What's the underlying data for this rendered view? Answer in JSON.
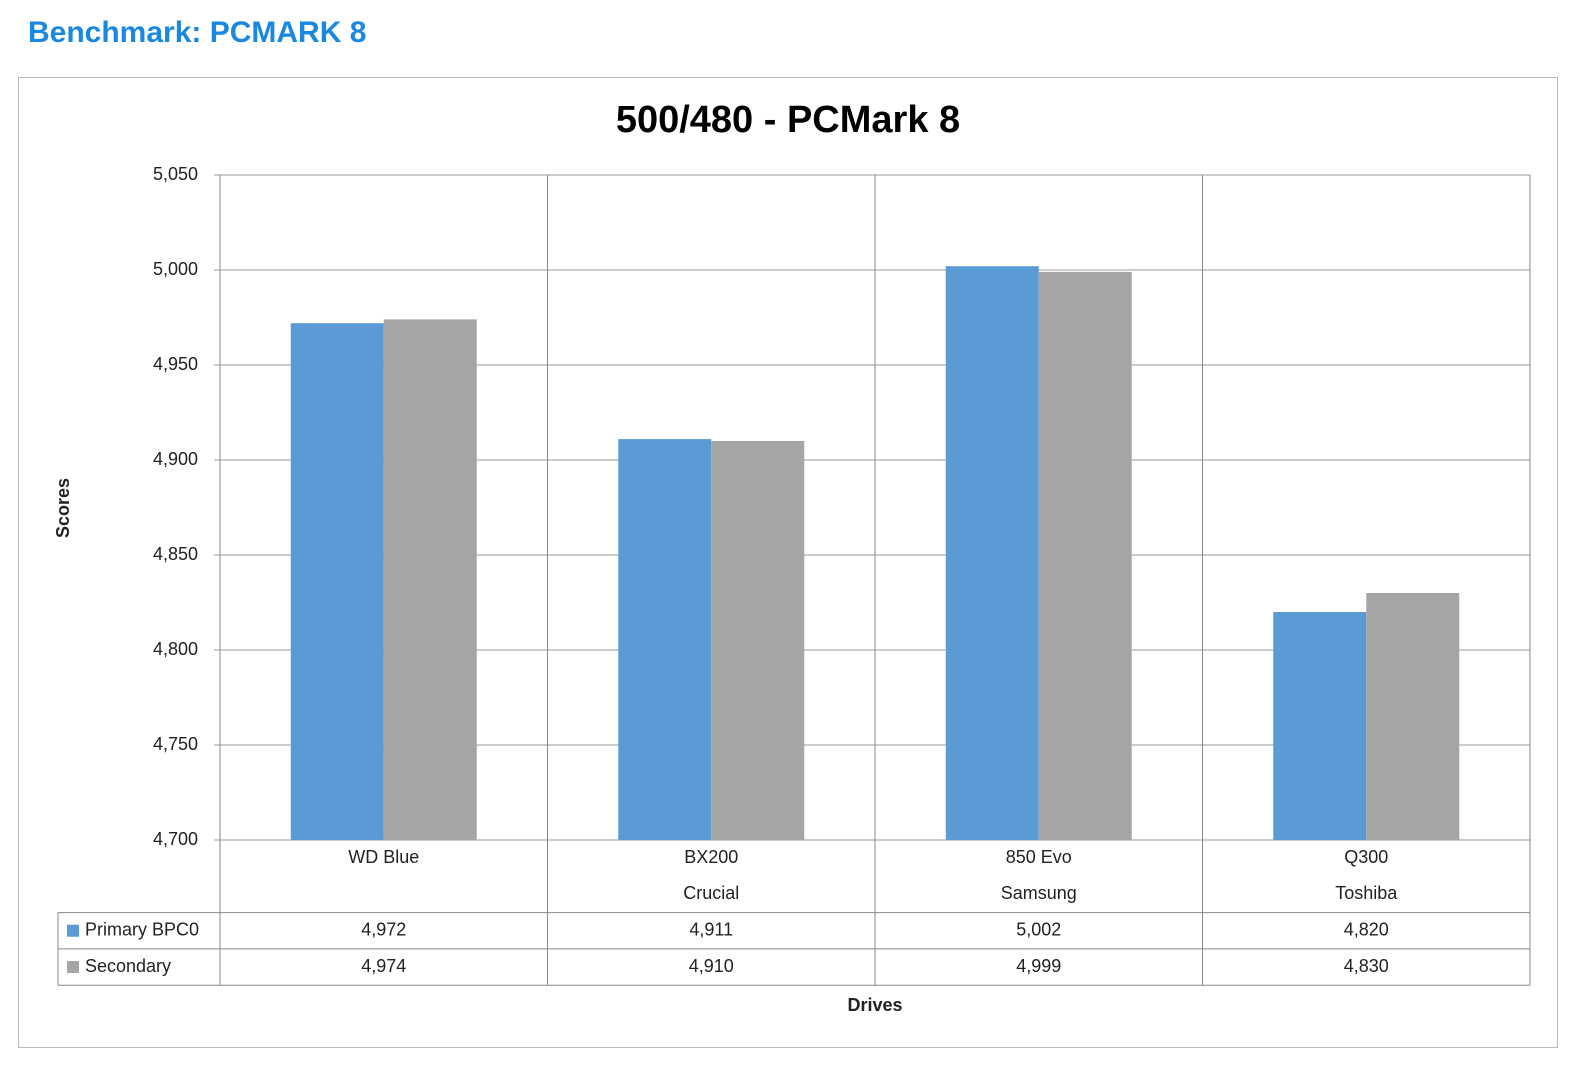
{
  "page_title": "Benchmark: PCMARK 8",
  "chart_data": {
    "type": "bar",
    "title": "500/480 - PCMark 8",
    "xlabel": "Drives",
    "ylabel": "Scores",
    "categories": [
      "WD Blue",
      "BX200",
      "850 Evo",
      "Q300"
    ],
    "category_groups": [
      null,
      "Crucial",
      "Samsung",
      "Toshiba"
    ],
    "series": [
      {
        "name": "Primary BPC0",
        "color": "#5b9bd5",
        "values": [
          4972,
          4911,
          5002,
          4820
        ],
        "value_labels": [
          "4,972",
          "4,911",
          "5,002",
          "4,820"
        ]
      },
      {
        "name": "Secondary",
        "color": "#a5a5a5",
        "values": [
          4974,
          4910,
          4999,
          4830
        ],
        "value_labels": [
          "4,974",
          "4,910",
          "4,999",
          "4,830"
        ]
      }
    ],
    "ylim": [
      4700,
      5050
    ],
    "yticks": [
      {
        "value": 4700,
        "label": "4,700"
      },
      {
        "value": 4750,
        "label": "4,750"
      },
      {
        "value": 4800,
        "label": "4,800"
      },
      {
        "value": 4850,
        "label": "4,850"
      },
      {
        "value": 4900,
        "label": "4,900"
      },
      {
        "value": 4950,
        "label": "4,950"
      },
      {
        "value": 5000,
        "label": "5,000"
      },
      {
        "value": 5050,
        "label": "5,050"
      }
    ],
    "grid": true
  }
}
